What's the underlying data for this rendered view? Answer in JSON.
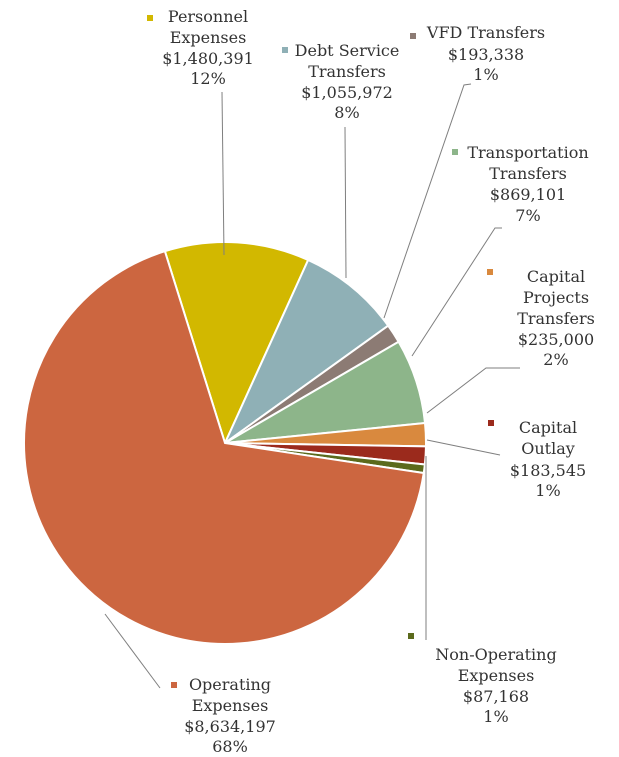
{
  "chart_data": {
    "type": "pie",
    "title": "",
    "slices": [
      {
        "name": "Operating Expenses",
        "value": 8634197,
        "value_label": "$8,634,197",
        "percent_label": "68%",
        "color": "#CC6640"
      },
      {
        "name": "Personnel Expenses",
        "value": 1480391,
        "value_label": "$1,480,391",
        "percent_label": "12%",
        "color": "#D2B800"
      },
      {
        "name": "Debt Service Transfers",
        "value": 1055972,
        "value_label": "$1,055,972",
        "percent_label": "8%",
        "color": "#8FB0B6"
      },
      {
        "name": "VFD Transfers",
        "value": 193338,
        "value_label": "$193,338",
        "percent_label": "1%",
        "color": "#8C7B74"
      },
      {
        "name": "Transportation Transfers",
        "value": 869101,
        "value_label": "$869,101",
        "percent_label": "7%",
        "color": "#8DB58A"
      },
      {
        "name": "Capital Projects Transfers",
        "value": 235000,
        "value_label": "$235,000",
        "percent_label": "2%",
        "color": "#D9893E"
      },
      {
        "name": "Capital Outlay",
        "value": 183545,
        "value_label": "$183,545",
        "percent_label": "1%",
        "color": "#9B2A1C"
      },
      {
        "name": "Non-Operating Expenses",
        "value": 87168,
        "value_label": "$87,168",
        "percent_label": "1%",
        "color": "#5B6A1C"
      }
    ],
    "legend": "labels-with-leader-lines"
  }
}
